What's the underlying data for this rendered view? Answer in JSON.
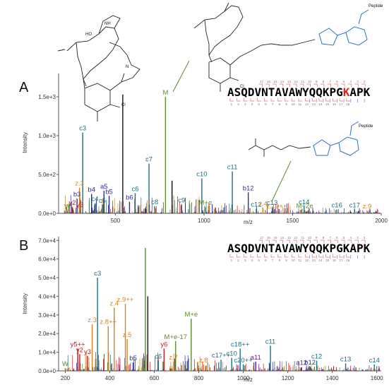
{
  "colors": {
    "c_ion": "#1b6f84",
    "z_ion": "#d9821c",
    "b_ion": "#2b2ba8",
    "y_ion": "#c41a1a",
    "a_ion": "#6a1aa0",
    "parent": "#5d8c2c",
    "linker": "#2a6ed8",
    "mod_residue": "#e02020",
    "frag_bracket_red": "#e07070",
    "frag_bracket_blue": "#7080e0"
  },
  "panel_a": {
    "label": "A",
    "sequence_pre": "ASQDVNTAVAWYQQKPG",
    "sequence_mod": "K",
    "sequence_post": "APK",
    "chem": {
      "peptide_label": "Peptide",
      "cl": "Cl",
      "nh": "NH",
      "ho": "HO",
      "n": "N"
    }
  },
  "panel_b": {
    "label": "B",
    "sequence": "ASQDVNTAVAWYQQKPGKAPK"
  },
  "chart_data": [
    {
      "type": "bar",
      "panel": "A",
      "xlabel": "m/z",
      "ylabel": "Intensity",
      "xlim": [
        180,
        2000
      ],
      "ylim": [
        0,
        1800
      ],
      "xticks": [
        500,
        1000,
        1500,
        2000
      ],
      "yticks": [
        0,
        500,
        1000,
        1500
      ],
      "ytick_labels": [
        "0.0e+0",
        "5.0e+2",
        "1.0e+3",
        "1.5e+3"
      ],
      "grid": false,
      "peaks": [
        {
          "x": 230,
          "y": 30,
          "label": "W",
          "cls": "parent"
        },
        {
          "x": 258,
          "y": 80,
          "label": "y2",
          "cls": "y_ion"
        },
        {
          "x": 284,
          "y": 190,
          "label": "b3",
          "cls": "b_ion"
        },
        {
          "x": 300,
          "y": 55,
          "label": "y3",
          "cls": "y_ion"
        },
        {
          "x": 298,
          "y": 330,
          "label": "z.3",
          "cls": "z_ion"
        },
        {
          "x": 316,
          "y": 1040,
          "label": "c3",
          "cls": "c_ion"
        },
        {
          "x": 366,
          "y": 250,
          "label": "b4",
          "cls": "b_ion"
        },
        {
          "x": 385,
          "y": 130,
          "label": "c4",
          "cls": "c_ion"
        },
        {
          "x": 427,
          "y": 110,
          "label": "c5",
          "cls": "c_ion"
        },
        {
          "x": 436,
          "y": 290,
          "label": "a5",
          "cls": "b_ion"
        },
        {
          "x": 465,
          "y": 225,
          "label": "b5",
          "cls": "b_ion"
        },
        {
          "x": 542,
          "y": 1530,
          "label": "",
          "cls": "other"
        },
        {
          "x": 580,
          "y": 150,
          "label": "b6",
          "cls": "b_ion"
        },
        {
          "x": 612,
          "y": 260,
          "label": "c6",
          "cls": "c_ion"
        },
        {
          "x": 690,
          "y": 640,
          "label": "c7",
          "cls": "c_ion"
        },
        {
          "x": 722,
          "y": 90,
          "label": "c8",
          "cls": "c_ion"
        },
        {
          "x": 783,
          "y": 1500,
          "label": "M",
          "cls": "parent"
        },
        {
          "x": 820,
          "y": 420,
          "label": "",
          "cls": "other"
        },
        {
          "x": 874,
          "y": 115,
          "label": "c9",
          "cls": "c_ion"
        },
        {
          "x": 988,
          "y": 450,
          "label": "c10",
          "cls": "c_ion"
        },
        {
          "x": 1008,
          "y": 80,
          "label": "M+e",
          "cls": "parent"
        },
        {
          "x": 1160,
          "y": 540,
          "label": "c11",
          "cls": "c_ion"
        },
        {
          "x": 1250,
          "y": 270,
          "label": "b12",
          "cls": "b_ion"
        },
        {
          "x": 1295,
          "y": 60,
          "label": "c12",
          "cls": "c_ion"
        },
        {
          "x": 1333,
          "y": 70,
          "label": "z.4",
          "cls": "z_ion"
        },
        {
          "x": 1385,
          "y": 80,
          "label": "c13",
          "cls": "c_ion"
        },
        {
          "x": 1410,
          "y": 35,
          "label": "z.19++",
          "cls": "z_ion"
        },
        {
          "x": 1565,
          "y": 90,
          "label": "c14",
          "cls": "c_ion"
        },
        {
          "x": 1568,
          "y": 40,
          "label": "M+2e",
          "cls": "parent"
        },
        {
          "x": 1750,
          "y": 50,
          "label": "c16",
          "cls": "c_ion"
        },
        {
          "x": 1850,
          "y": 50,
          "label": "c17",
          "cls": "c_ion"
        },
        {
          "x": 1920,
          "y": 35,
          "label": "z.9",
          "cls": "z_ion"
        }
      ]
    },
    {
      "type": "bar",
      "panel": "B",
      "xlabel": "m/z",
      "ylabel": "Intensity",
      "xlim": [
        170,
        1620
      ],
      "ylim": [
        0,
        72000
      ],
      "xticks": [
        200,
        400,
        600,
        800,
        1000,
        1200,
        1400,
        1600
      ],
      "yticks": [
        0,
        10000,
        20000,
        30000,
        40000,
        50000,
        60000,
        70000
      ],
      "ytick_labels": [
        "0.0e+0",
        "1.0e+4",
        "2.0e+4",
        "3.0e+4",
        "4.0e+4",
        "5.0e+4",
        "6.0e+4",
        "7.0e+4"
      ],
      "grid": false,
      "peaks": [
        {
          "x": 200,
          "y": 1500,
          "label": "W",
          "cls": "parent"
        },
        {
          "x": 256,
          "y": 12000,
          "label": "y5++",
          "cls": "y_ion"
        },
        {
          "x": 265,
          "y": 9000,
          "label": "y2",
          "cls": "y_ion"
        },
        {
          "x": 300,
          "y": 8000,
          "label": "y3",
          "cls": "y_ion"
        },
        {
          "x": 321,
          "y": 25000,
          "label": "z.3",
          "cls": "z_ion"
        },
        {
          "x": 345,
          "y": 50000,
          "label": "c3",
          "cls": "c_ion"
        },
        {
          "x": 393,
          "y": 24000,
          "label": "z.8++",
          "cls": "z_ion"
        },
        {
          "x": 420,
          "y": 34000,
          "label": "z.4",
          "cls": "z_ion"
        },
        {
          "x": 470,
          "y": 36000,
          "label": "z.9++",
          "cls": "z_ion"
        },
        {
          "x": 478,
          "y": 17000,
          "label": "z.5",
          "cls": "z_ion"
        },
        {
          "x": 505,
          "y": 4500,
          "label": "b5",
          "cls": "b_ion"
        },
        {
          "x": 560,
          "y": 66000,
          "label": "",
          "cls": "parent"
        },
        {
          "x": 571,
          "y": 40000,
          "label": "",
          "cls": "other"
        },
        {
          "x": 618,
          "y": 5500,
          "label": "c6",
          "cls": "c_ion"
        },
        {
          "x": 644,
          "y": 12000,
          "label": "y6",
          "cls": "y_ion"
        },
        {
          "x": 686,
          "y": 5000,
          "label": "z.7",
          "cls": "z_ion"
        },
        {
          "x": 696,
          "y": 16000,
          "label": "M+e-17",
          "cls": "parent"
        },
        {
          "x": 766,
          "y": 28000,
          "label": "M+e",
          "cls": "parent"
        },
        {
          "x": 822,
          "y": 3500,
          "label": "z.8",
          "cls": "z_ion"
        },
        {
          "x": 900,
          "y": 6000,
          "label": "c17++",
          "cls": "c_ion"
        },
        {
          "x": 948,
          "y": 7000,
          "label": "c10",
          "cls": "c_ion"
        },
        {
          "x": 986,
          "y": 12000,
          "label": "c18++",
          "cls": "c_ion"
        },
        {
          "x": 1000,
          "y": 3500,
          "label": "c20++",
          "cls": "c_ion"
        },
        {
          "x": 1056,
          "y": 5000,
          "label": "a11",
          "cls": "a_ion"
        },
        {
          "x": 1122,
          "y": 13500,
          "label": "c11",
          "cls": "c_ion"
        },
        {
          "x": 1262,
          "y": 2000,
          "label": "a12",
          "cls": "a_ion"
        },
        {
          "x": 1300,
          "y": 2200,
          "label": "b12",
          "cls": "b_ion"
        },
        {
          "x": 1330,
          "y": 5500,
          "label": "c12",
          "cls": "c_ion"
        },
        {
          "x": 1460,
          "y": 4000,
          "label": "c13",
          "cls": "c_ion"
        },
        {
          "x": 1589,
          "y": 3500,
          "label": "c14",
          "cls": "c_ion"
        }
      ]
    }
  ]
}
